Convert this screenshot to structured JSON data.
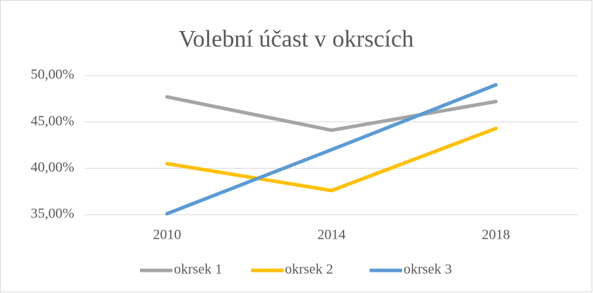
{
  "chart_data": {
    "type": "line",
    "title": "Volební účast v okrscích",
    "categories": [
      "2010",
      "2014",
      "2018"
    ],
    "series": [
      {
        "name": "okrsek 1",
        "color": "#a5a5a5",
        "values": [
          47.7,
          44.1,
          47.2
        ]
      },
      {
        "name": "okrsek 2",
        "color": "#ffc000",
        "values": [
          40.5,
          37.6,
          44.3
        ]
      },
      {
        "name": "okrsek 3",
        "color": "#5b9bd5",
        "values": [
          35.1,
          42.0,
          49.0
        ]
      }
    ],
    "ylim": [
      35,
      50
    ],
    "yticks": [
      {
        "value": 35,
        "label": "35,00%"
      },
      {
        "value": 40,
        "label": "40,00%"
      },
      {
        "value": 45,
        "label": "45,00%"
      },
      {
        "value": 50,
        "label": "50,00%"
      }
    ],
    "grid": true,
    "legend": "bottom"
  }
}
